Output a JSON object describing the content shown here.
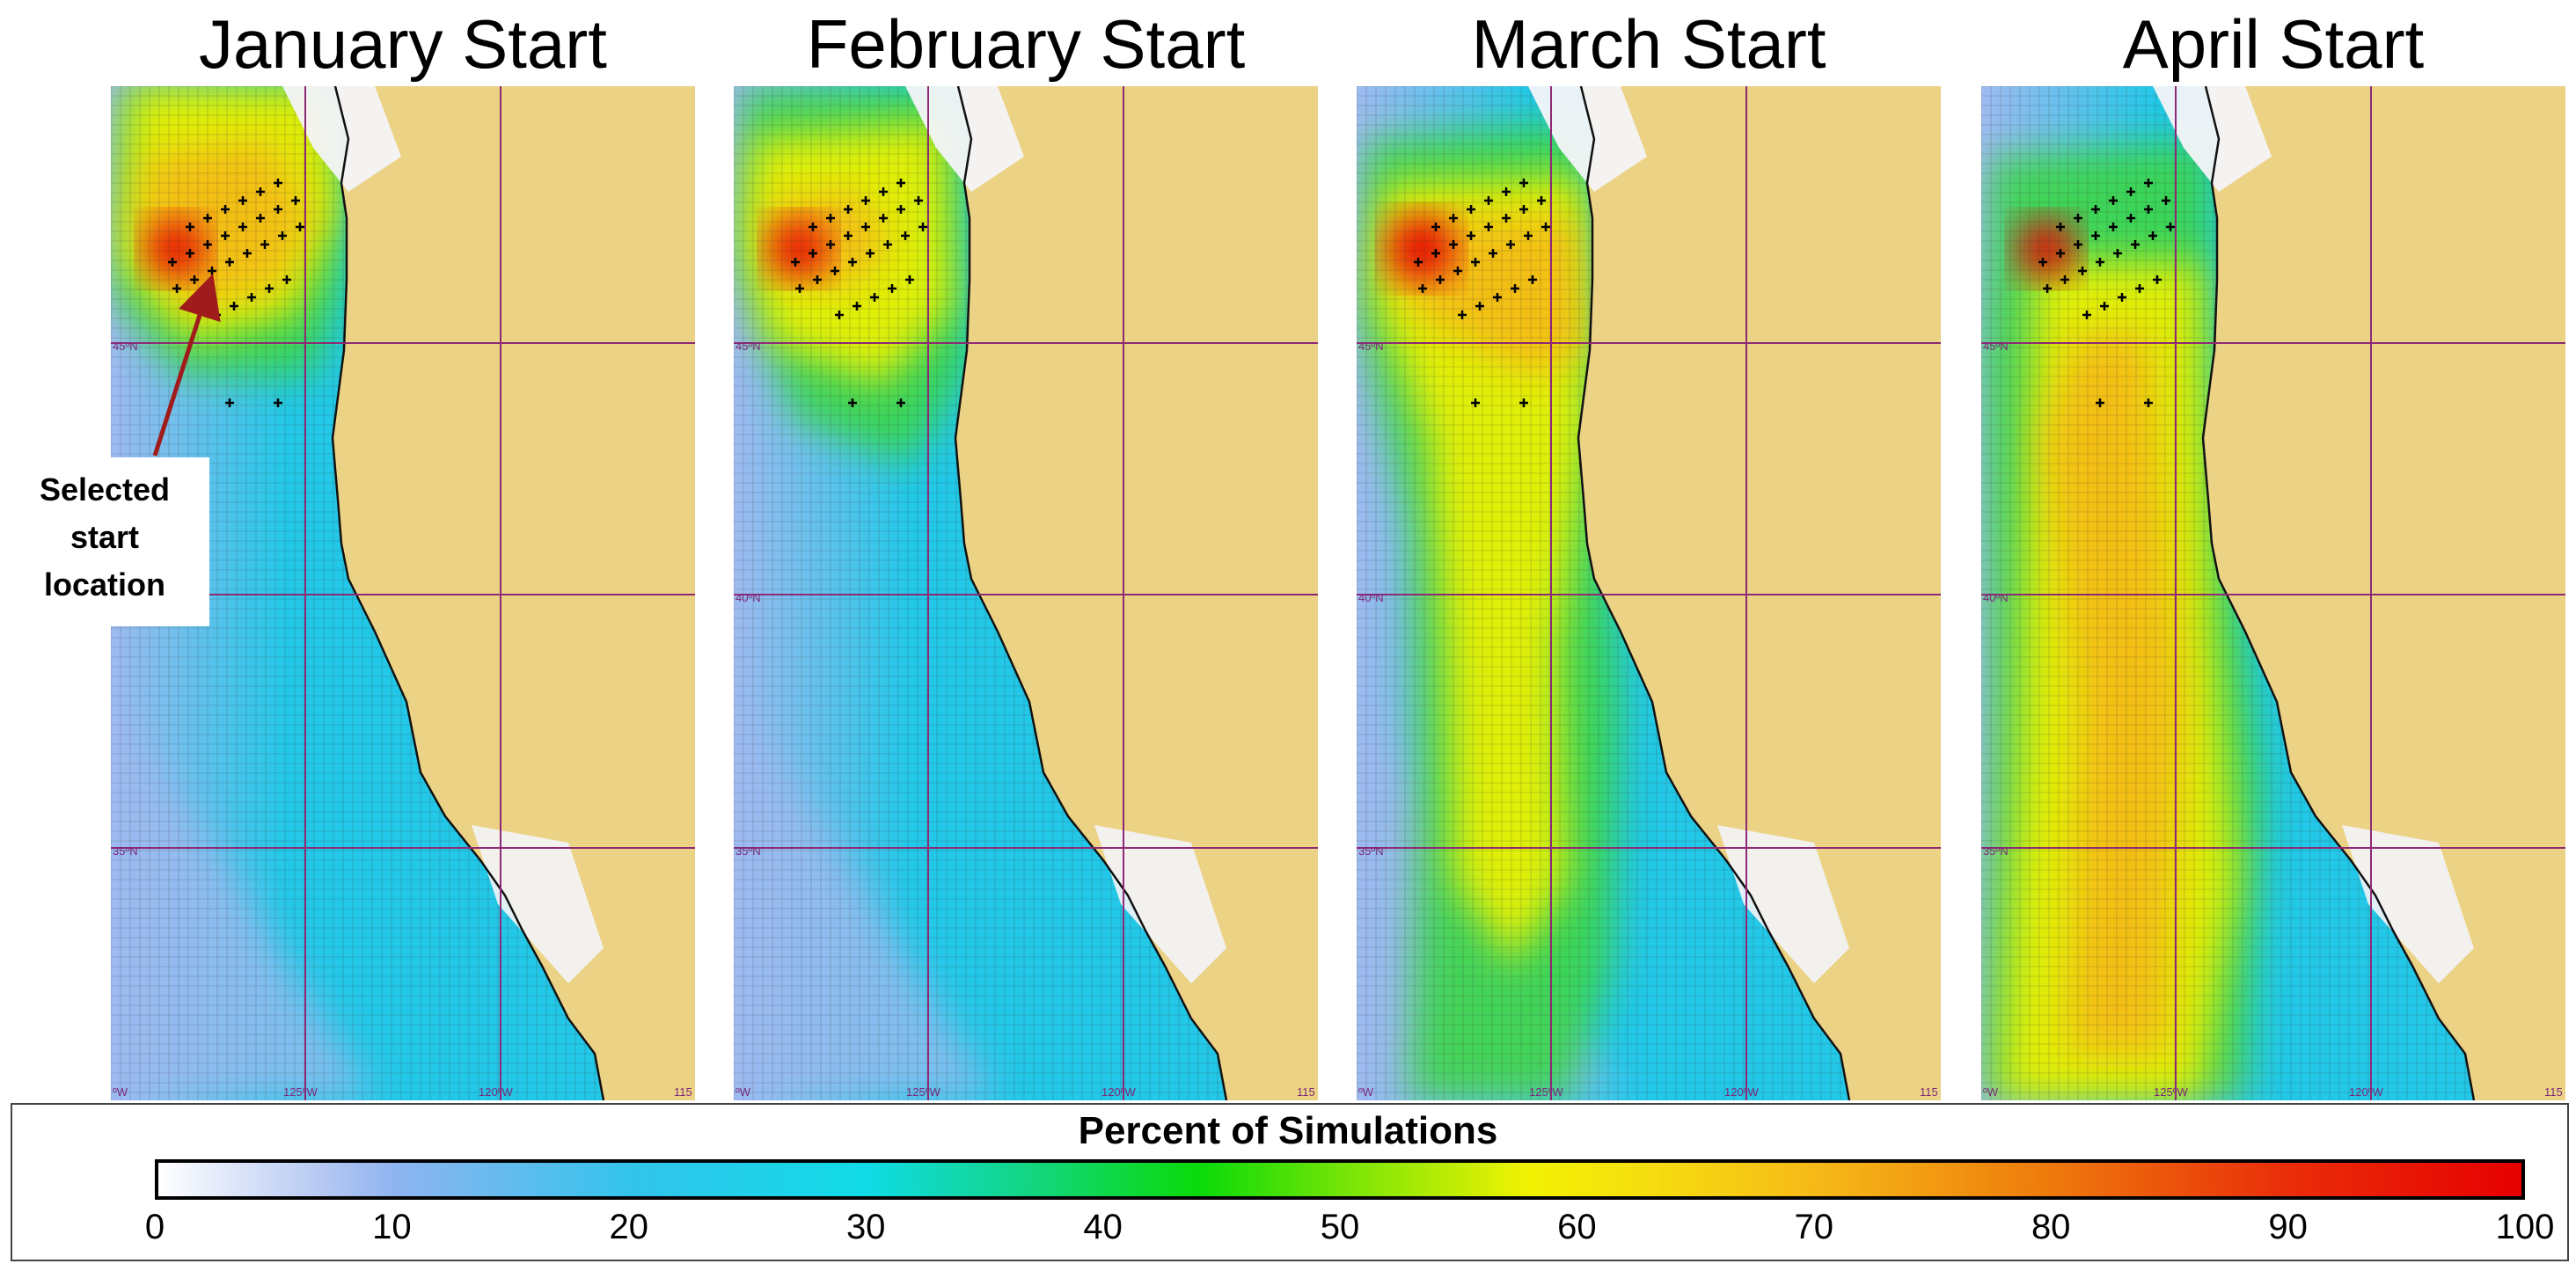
{
  "panels": [
    {
      "title": "January Start"
    },
    {
      "title": "February Start"
    },
    {
      "title": "March Start"
    },
    {
      "title": "April Start"
    }
  ],
  "map_labels": {
    "lat_45": "45ºN",
    "lat_40": "40ºN",
    "lat_35": "35ºN",
    "lon_130": "ºW",
    "lon_125": "125ºW",
    "lon_120": "120ºW",
    "lon_115": "115"
  },
  "annotation": {
    "line1": "Selected",
    "line2": "start",
    "line3": "location",
    "arrow_color": "#a01c1c"
  },
  "legend": {
    "title": "Percent of Simulations",
    "ticks": [
      "0",
      "10",
      "20",
      "30",
      "40",
      "50",
      "60",
      "70",
      "80",
      "90",
      "100"
    ],
    "range": [
      0,
      100
    ]
  },
  "colors": {
    "land": "#ecd285",
    "grid_line": "#8e2a75",
    "hot": "#e60000",
    "high": "#f6ba18",
    "mid": "#f2f203",
    "green": "#3cd64a",
    "cyan": "#23c8e8",
    "low": "#9fbaf0"
  }
}
